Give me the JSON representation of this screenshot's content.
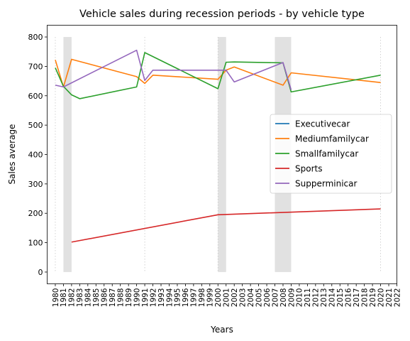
{
  "chart_data": {
    "type": "line",
    "title": "Vehicle sales during recession periods - by vehicle type",
    "xlabel": "Years",
    "ylabel": "Sales average",
    "xlim": [
      1979,
      2022
    ],
    "ylim": [
      -40,
      840
    ],
    "x_ticks": [
      1980,
      1981,
      1982,
      1983,
      1984,
      1985,
      1986,
      1987,
      1988,
      1989,
      1990,
      1991,
      1992,
      1993,
      1994,
      1995,
      1996,
      1997,
      1998,
      1999,
      2000,
      2001,
      2002,
      2003,
      2004,
      2005,
      2006,
      2007,
      2008,
      2009,
      2010,
      2011,
      2012,
      2013,
      2014,
      2015,
      2016,
      2017,
      2018,
      2019,
      2020,
      2021,
      2022
    ],
    "y_ticks": [
      0,
      100,
      200,
      300,
      400,
      500,
      600,
      700,
      800
    ],
    "recession_bands": [
      [
        1981,
        1982
      ],
      [
        2000,
        2001
      ],
      [
        2007,
        2009
      ]
    ],
    "vertical_guides": [
      1980,
      1991,
      2000,
      2020
    ],
    "legend_position": "center-right",
    "series": [
      {
        "name": "Executivecar",
        "color": "#1f77b4",
        "x": [],
        "y": []
      },
      {
        "name": "Mediumfamilycar",
        "color": "#ff7f0e",
        "x": [
          1980,
          1981,
          1982,
          1990,
          1991,
          1992,
          2000,
          2001,
          2002,
          2008,
          2009,
          2020
        ],
        "y": [
          722,
          630,
          724,
          665,
          642,
          670,
          656,
          687,
          698,
          636,
          678,
          645
        ]
      },
      {
        "name": "Smallfamilycar",
        "color": "#2ca02c",
        "x": [
          1980,
          1981,
          1982,
          1983,
          1990,
          1991,
          2000,
          2001,
          2002,
          2008,
          2009,
          2020
        ],
        "y": [
          695,
          632,
          603,
          590,
          630,
          747,
          624,
          714,
          715,
          712,
          613,
          670
        ]
      },
      {
        "name": "Sports",
        "color": "#d62728",
        "x": [
          1982,
          2000,
          2020
        ],
        "y": [
          102,
          195,
          215
        ]
      },
      {
        "name": "Supperminicar",
        "color": "#9467bd",
        "x": [
          1980,
          1981,
          1990,
          1991,
          1992,
          2000,
          2001,
          2002,
          2008,
          2009
        ],
        "y": [
          636,
          630,
          755,
          652,
          687,
          687,
          687,
          647,
          713,
          620
        ]
      }
    ]
  }
}
